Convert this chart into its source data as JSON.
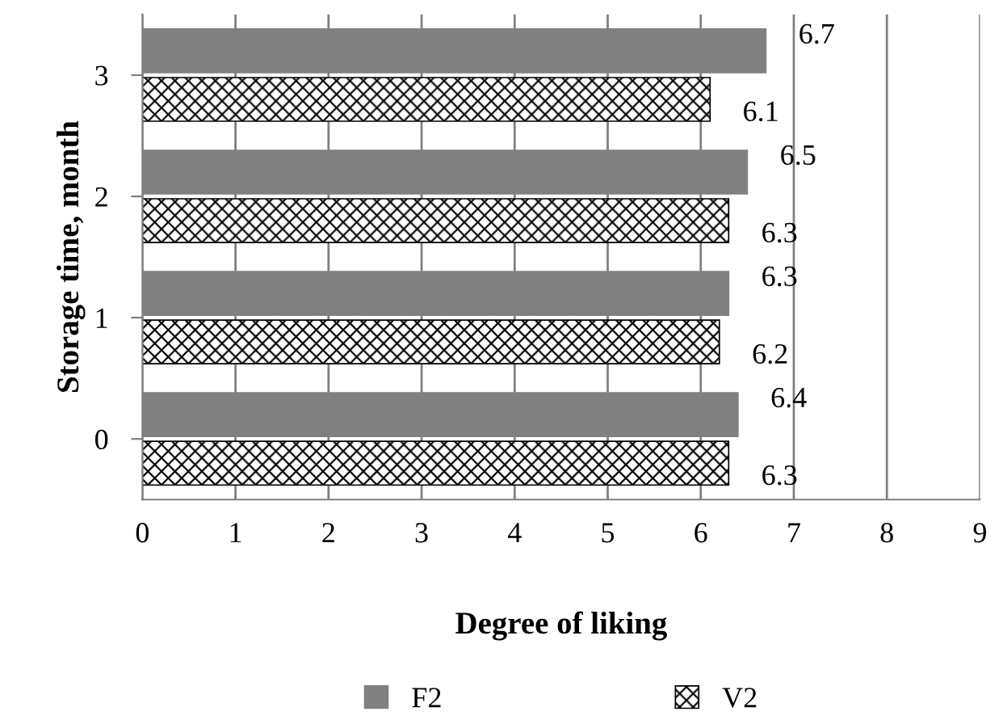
{
  "chart_data": {
    "type": "bar",
    "orientation": "horizontal",
    "xlabel": "Degree of liking",
    "ylabel": "Storage time, month",
    "categories": [
      "3",
      "2",
      "1",
      "0"
    ],
    "series": [
      {
        "name": "F2",
        "color": "#808080",
        "values": [
          6.7,
          6.5,
          6.3,
          6.4
        ]
      },
      {
        "name": "V2",
        "color": "#000000",
        "values": [
          6.1,
          6.3,
          6.2,
          6.3
        ]
      }
    ],
    "xlim": [
      0,
      9
    ],
    "xticks": [
      0,
      1,
      2,
      3,
      4,
      5,
      6,
      7,
      8,
      9
    ],
    "grid": "x",
    "legend": "bottom",
    "data_labels": true
  }
}
